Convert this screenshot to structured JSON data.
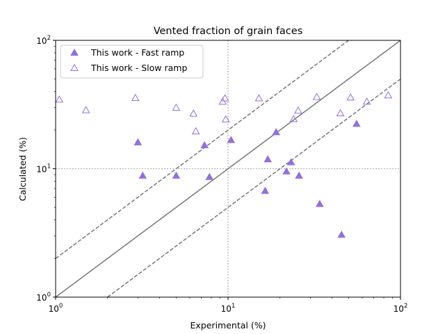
{
  "chart_data": {
    "type": "scatter",
    "title": "Vented fraction of grain faces",
    "xlabel": "Experimental (%)",
    "ylabel": "Calculated (%)",
    "xscale": "log",
    "yscale": "log",
    "xlim": [
      1,
      100
    ],
    "ylim": [
      1,
      100
    ],
    "x_ticks": [
      {
        "value": 1,
        "base": "10",
        "exp": "0"
      },
      {
        "value": 10,
        "base": "10",
        "exp": "1"
      },
      {
        "value": 100,
        "base": "10",
        "exp": "2"
      }
    ],
    "y_ticks": [
      {
        "value": 1,
        "base": "10",
        "exp": "0"
      },
      {
        "value": 10,
        "base": "10",
        "exp": "1"
      },
      {
        "value": 100,
        "base": "10",
        "exp": "2"
      }
    ],
    "grid": "major, dotted",
    "legend_position": "upper-left",
    "marker_color": "#9370DB",
    "reference_lines": [
      {
        "style": "solid",
        "color": "#777777",
        "factor": 1
      },
      {
        "style": "dashed",
        "color": "#777777",
        "factor": 2
      },
      {
        "style": "dashed",
        "color": "#777777",
        "factor": 0.5
      }
    ],
    "series": [
      {
        "name": "This work - Fast ramp",
        "marker": "filled-triangle",
        "points": [
          {
            "x": 3.0,
            "y": 16.0
          },
          {
            "x": 3.2,
            "y": 8.8
          },
          {
            "x": 5.0,
            "y": 8.8
          },
          {
            "x": 7.3,
            "y": 15.2
          },
          {
            "x": 7.8,
            "y": 8.6
          },
          {
            "x": 10.4,
            "y": 16.7
          },
          {
            "x": 16.4,
            "y": 6.7
          },
          {
            "x": 17.0,
            "y": 11.8
          },
          {
            "x": 19.0,
            "y": 19.2
          },
          {
            "x": 21.8,
            "y": 9.5
          },
          {
            "x": 23.2,
            "y": 11.2
          },
          {
            "x": 25.8,
            "y": 8.8
          },
          {
            "x": 34.0,
            "y": 5.3
          },
          {
            "x": 45.5,
            "y": 3.05
          },
          {
            "x": 55.6,
            "y": 22.3
          }
        ]
      },
      {
        "name": "This work - Slow ramp",
        "marker": "hollow-triangle",
        "points": [
          {
            "x": 1.05,
            "y": 34.5
          },
          {
            "x": 1.5,
            "y": 28.5
          },
          {
            "x": 2.9,
            "y": 35.5
          },
          {
            "x": 5.0,
            "y": 29.8
          },
          {
            "x": 6.3,
            "y": 26.8
          },
          {
            "x": 6.5,
            "y": 19.5
          },
          {
            "x": 9.3,
            "y": 33.2
          },
          {
            "x": 9.6,
            "y": 35.3
          },
          {
            "x": 9.7,
            "y": 24.2
          },
          {
            "x": 15.1,
            "y": 35.3
          },
          {
            "x": 24.0,
            "y": 24.3
          },
          {
            "x": 25.5,
            "y": 28.3
          },
          {
            "x": 32.7,
            "y": 36.2
          },
          {
            "x": 44.8,
            "y": 27.0
          },
          {
            "x": 51.3,
            "y": 35.8
          },
          {
            "x": 63.8,
            "y": 33.2
          },
          {
            "x": 84.8,
            "y": 37.2
          }
        ]
      }
    ]
  }
}
